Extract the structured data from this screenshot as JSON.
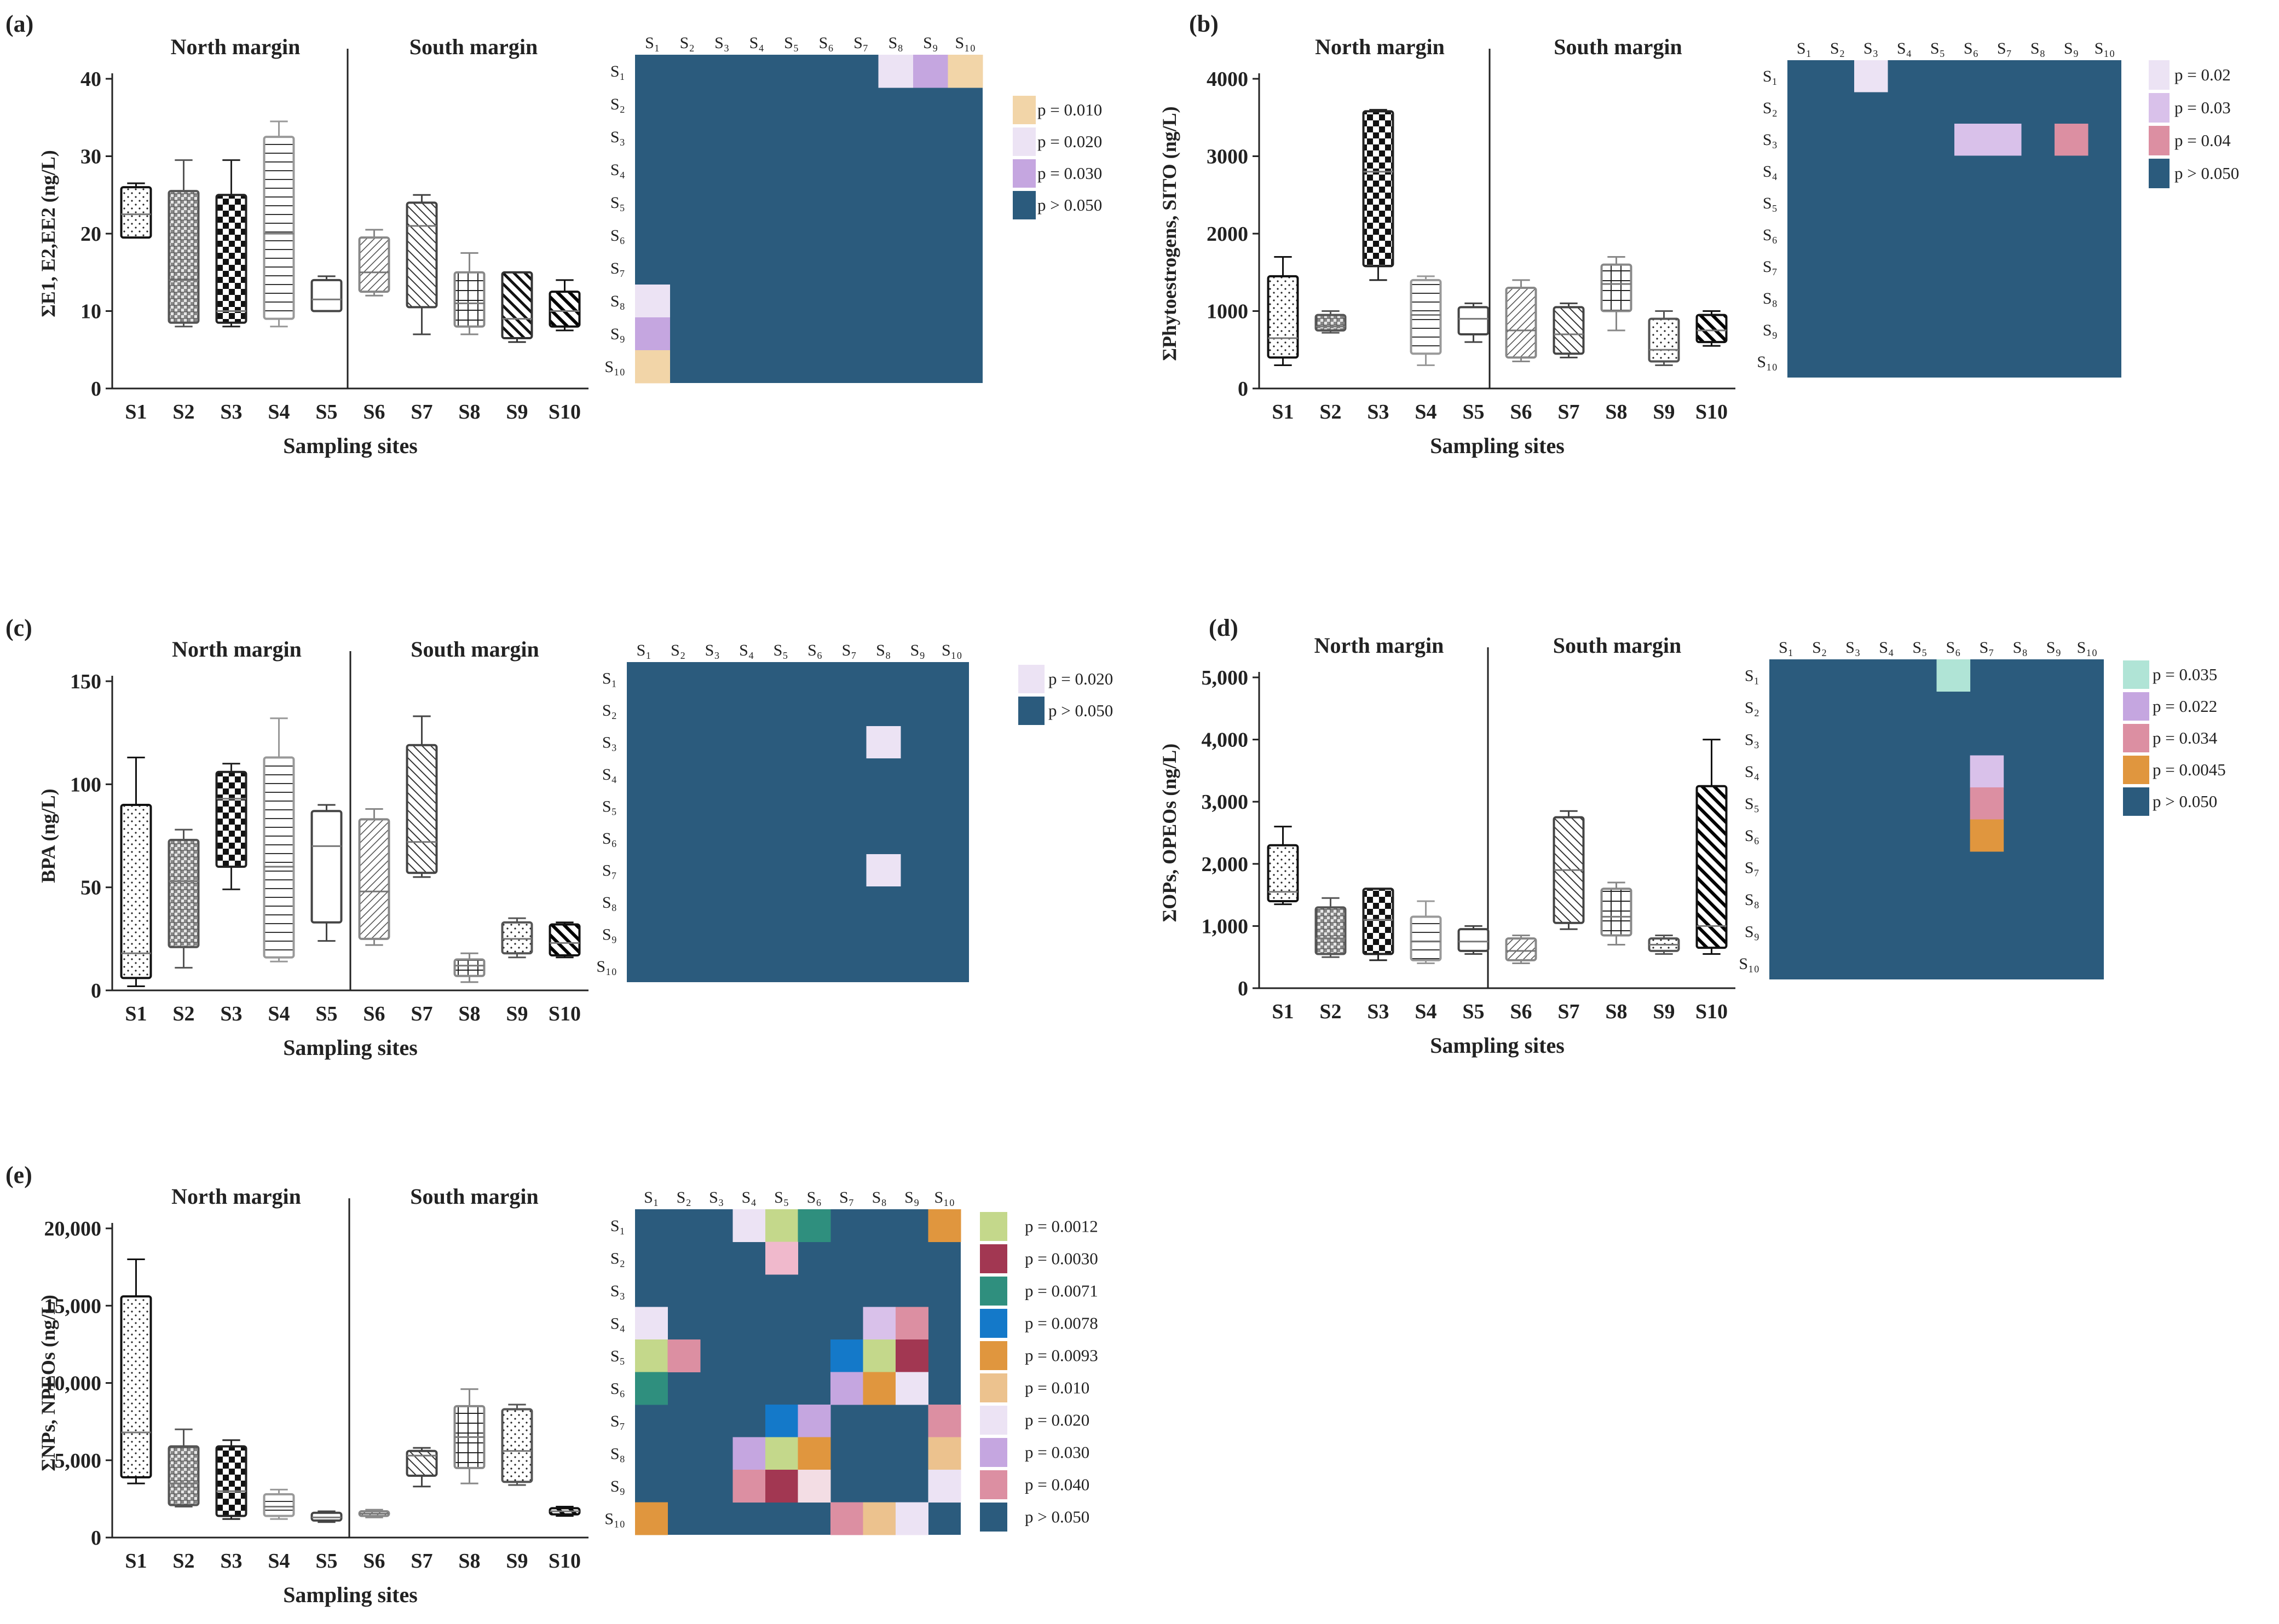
{
  "figure": {
    "sites": [
      "S1",
      "S2",
      "S3",
      "S4",
      "S5",
      "S6",
      "S7",
      "S8",
      "S9",
      "S10"
    ],
    "heatmap_sites": [
      "S₁",
      "S₂",
      "S₃",
      "S₄",
      "S₅",
      "S₆",
      "S₇",
      "S₈",
      "S₉",
      "S₁₀"
    ],
    "north_label": "North margin",
    "south_label": "South margin",
    "xlabel": "Sampling sites",
    "heatmap_base_color": "#2b5b7d"
  },
  "chart_data": [
    {
      "type": "boxplot+heatmap",
      "panel": "(a)",
      "ylabel": "ΣE1, E2,EE2 (ng/L)",
      "ylim": [
        0,
        40
      ],
      "yticks": [
        0,
        10,
        20,
        30,
        40
      ],
      "boxes": [
        {
          "site": "S1",
          "min": 19.5,
          "q1": 19.5,
          "median": 22.5,
          "q3": 26,
          "max": 26.5,
          "pattern": "dots",
          "color": "#111111"
        },
        {
          "site": "S2",
          "min": 8,
          "q1": 8.5,
          "median": 14,
          "q3": 25.5,
          "max": 29.5,
          "pattern": "weave",
          "color": "#555555"
        },
        {
          "site": "S3",
          "min": 8,
          "q1": 8.5,
          "median": 10,
          "q3": 25,
          "max": 29.5,
          "pattern": "checker",
          "color": "#222222"
        },
        {
          "site": "S4",
          "min": 8,
          "q1": 9,
          "median": 20,
          "q3": 32.5,
          "max": 34.5,
          "pattern": "hlines",
          "color": "#999999"
        },
        {
          "site": "S5",
          "min": 10,
          "q1": 10,
          "median": 11.5,
          "q3": 14,
          "max": 14.5,
          "pattern": "none",
          "color": "#444444"
        },
        {
          "site": "S6",
          "min": 12,
          "q1": 12.5,
          "median": 15,
          "q3": 19.5,
          "max": 20.5,
          "pattern": "diag",
          "color": "#888888"
        },
        {
          "site": "S7",
          "min": 7,
          "q1": 10.5,
          "median": 21,
          "q3": 24,
          "max": 25,
          "pattern": "diagback",
          "color": "#444444"
        },
        {
          "site": "S8",
          "min": 7,
          "q1": 8,
          "median": 11,
          "q3": 15,
          "max": 17.5,
          "pattern": "grid",
          "color": "#888888"
        },
        {
          "site": "S9",
          "min": 6,
          "q1": 6.5,
          "median": 9,
          "q3": 15,
          "max": 15,
          "pattern": "bolddiag",
          "color": "#333333"
        },
        {
          "site": "S10",
          "min": 7.5,
          "q1": 8,
          "median": 10,
          "q3": 12.5,
          "max": 14,
          "pattern": "bolddiag2",
          "color": "#111111"
        }
      ],
      "heatmap_cells": [
        {
          "row": "S1",
          "col": "S8",
          "color": "#ece3f4"
        },
        {
          "row": "S1",
          "col": "S9",
          "color": "#c5a6e0"
        },
        {
          "row": "S1",
          "col": "S10",
          "color": "#f2d5a8"
        },
        {
          "row": "S8",
          "col": "S1",
          "color": "#ece3f4"
        },
        {
          "row": "S9",
          "col": "S1",
          "color": "#c5a6e0"
        },
        {
          "row": "S10",
          "col": "S1",
          "color": "#f2d5a8"
        }
      ],
      "legend": [
        {
          "label": "p = 0.010",
          "color": "#f2d5a8"
        },
        {
          "label": "p = 0.020",
          "color": "#ece3f4"
        },
        {
          "label": "p = 0.030",
          "color": "#c5a6e0"
        },
        {
          "label": "p > 0.050",
          "color": "#2b5b7d"
        }
      ]
    },
    {
      "type": "boxplot+heatmap",
      "panel": "(b)",
      "ylabel": "ΣPhytoestrogens, SITO (ng/L)",
      "ylim": [
        0,
        4000
      ],
      "yticks": [
        0,
        1000,
        2000,
        3000,
        4000
      ],
      "boxes": [
        {
          "site": "S1",
          "min": 300,
          "q1": 400,
          "median": 650,
          "q3": 1450,
          "max": 1700,
          "pattern": "dots",
          "color": "#111111"
        },
        {
          "site": "S2",
          "min": 720,
          "q1": 750,
          "median": 800,
          "q3": 950,
          "max": 1000,
          "pattern": "weave",
          "color": "#555555"
        },
        {
          "site": "S3",
          "min": 1400,
          "q1": 1580,
          "median": 2800,
          "q3": 3580,
          "max": 3600,
          "pattern": "checker",
          "color": "#222222"
        },
        {
          "site": "S4",
          "min": 300,
          "q1": 450,
          "median": 950,
          "q3": 1400,
          "max": 1450,
          "pattern": "hlines",
          "color": "#999999"
        },
        {
          "site": "S5",
          "min": 600,
          "q1": 700,
          "median": 900,
          "q3": 1050,
          "max": 1100,
          "pattern": "none",
          "color": "#444444"
        },
        {
          "site": "S6",
          "min": 350,
          "q1": 400,
          "median": 750,
          "q3": 1300,
          "max": 1400,
          "pattern": "diag",
          "color": "#888888"
        },
        {
          "site": "S7",
          "min": 400,
          "q1": 450,
          "median": 700,
          "q3": 1050,
          "max": 1100,
          "pattern": "diagback",
          "color": "#444444"
        },
        {
          "site": "S8",
          "min": 750,
          "q1": 1000,
          "median": 1350,
          "q3": 1600,
          "max": 1700,
          "pattern": "grid",
          "color": "#888888"
        },
        {
          "site": "S9",
          "min": 300,
          "q1": 350,
          "median": 500,
          "q3": 900,
          "max": 1000,
          "pattern": "dots",
          "color": "#555555"
        },
        {
          "site": "S10",
          "min": 550,
          "q1": 600,
          "median": 750,
          "q3": 950,
          "max": 1000,
          "pattern": "bolddiag2",
          "color": "#111111"
        }
      ],
      "heatmap_cells": [
        {
          "row": "S1",
          "col": "S3",
          "color": "#ece3f4"
        },
        {
          "row": "S3",
          "col": "S6",
          "color": "#d9c1ea"
        },
        {
          "row": "S3",
          "col": "S7",
          "color": "#d9c1ea"
        },
        {
          "row": "S3",
          "col": "S9",
          "color": "#dc8fa2"
        }
      ],
      "legend": [
        {
          "label": "p = 0.02",
          "color": "#ece3f4"
        },
        {
          "label": "p = 0.03",
          "color": "#d9c1ea"
        },
        {
          "label": "p = 0.04",
          "color": "#dc8fa2"
        },
        {
          "label": "p > 0.050",
          "color": "#2b5b7d"
        }
      ]
    },
    {
      "type": "boxplot+heatmap",
      "panel": "(c)",
      "ylabel": "BPA (ng/L)",
      "ylim": [
        0,
        150
      ],
      "yticks": [
        0,
        50,
        100,
        150
      ],
      "boxes": [
        {
          "site": "S1",
          "min": 2,
          "q1": 6,
          "median": 18,
          "q3": 90,
          "max": 113,
          "pattern": "dots",
          "color": "#111111"
        },
        {
          "site": "S2",
          "min": 11,
          "q1": 21,
          "median": 53,
          "q3": 73,
          "max": 78,
          "pattern": "weave",
          "color": "#555555"
        },
        {
          "site": "S3",
          "min": 49,
          "q1": 60,
          "median": 93,
          "q3": 106,
          "max": 110,
          "pattern": "checker",
          "color": "#222222"
        },
        {
          "site": "S4",
          "min": 14,
          "q1": 16,
          "median": 60,
          "q3": 113,
          "max": 132,
          "pattern": "hlines",
          "color": "#999999"
        },
        {
          "site": "S5",
          "min": 24,
          "q1": 33,
          "median": 70,
          "q3": 87,
          "max": 90,
          "pattern": "none",
          "color": "#444444"
        },
        {
          "site": "S6",
          "min": 22,
          "q1": 25,
          "median": 48,
          "q3": 83,
          "max": 88,
          "pattern": "diag",
          "color": "#888888"
        },
        {
          "site": "S7",
          "min": 55,
          "q1": 57,
          "median": 72,
          "q3": 119,
          "max": 133,
          "pattern": "diagback",
          "color": "#444444"
        },
        {
          "site": "S8",
          "min": 4,
          "q1": 7,
          "median": 12,
          "q3": 15,
          "max": 18,
          "pattern": "grid",
          "color": "#888888"
        },
        {
          "site": "S9",
          "min": 16,
          "q1": 18,
          "median": 25,
          "q3": 33,
          "max": 35,
          "pattern": "dots",
          "color": "#555555"
        },
        {
          "site": "S10",
          "min": 16,
          "q1": 17,
          "median": 23,
          "q3": 32,
          "max": 33,
          "pattern": "bolddiag2",
          "color": "#111111"
        }
      ],
      "heatmap_cells": [
        {
          "row": "S3",
          "col": "S8",
          "color": "#ece3f4"
        },
        {
          "row": "S7",
          "col": "S8",
          "color": "#ece3f4"
        }
      ],
      "legend": [
        {
          "label": "p = 0.020",
          "color": "#ece3f4"
        },
        {
          "label": "p > 0.050",
          "color": "#2b5b7d"
        }
      ]
    },
    {
      "type": "boxplot+heatmap",
      "panel": "(d)",
      "ylabel": "ΣOPs, OPEOs (ng/L)",
      "ylim": [
        0,
        5000
      ],
      "yticks": [
        0,
        1000,
        2000,
        3000,
        4000,
        5000
      ],
      "ytick_labels": [
        "0",
        "1,000",
        "2,000",
        "3,000",
        "4,000",
        "5,000"
      ],
      "boxes": [
        {
          "site": "S1",
          "min": 1350,
          "q1": 1400,
          "median": 1550,
          "q3": 2300,
          "max": 2600,
          "pattern": "dots",
          "color": "#111111"
        },
        {
          "site": "S2",
          "min": 500,
          "q1": 550,
          "median": 800,
          "q3": 1300,
          "max": 1450,
          "pattern": "weave",
          "color": "#555555"
        },
        {
          "site": "S3",
          "min": 450,
          "q1": 550,
          "median": 1100,
          "q3": 1600,
          "max": 1600,
          "pattern": "checker",
          "color": "#222222"
        },
        {
          "site": "S4",
          "min": 400,
          "q1": 450,
          "median": 750,
          "q3": 1150,
          "max": 1400,
          "pattern": "hlines",
          "color": "#999999"
        },
        {
          "site": "S5",
          "min": 550,
          "q1": 600,
          "median": 750,
          "q3": 950,
          "max": 1000,
          "pattern": "none",
          "color": "#444444"
        },
        {
          "site": "S6",
          "min": 400,
          "q1": 450,
          "median": 600,
          "q3": 800,
          "max": 850,
          "pattern": "diag",
          "color": "#888888"
        },
        {
          "site": "S7",
          "min": 950,
          "q1": 1050,
          "median": 1900,
          "q3": 2750,
          "max": 2850,
          "pattern": "diagback",
          "color": "#444444"
        },
        {
          "site": "S8",
          "min": 700,
          "q1": 850,
          "median": 1150,
          "q3": 1600,
          "max": 1700,
          "pattern": "grid",
          "color": "#888888"
        },
        {
          "site": "S9",
          "min": 550,
          "q1": 600,
          "median": 700,
          "q3": 800,
          "max": 850,
          "pattern": "dots",
          "color": "#555555"
        },
        {
          "site": "S10",
          "min": 550,
          "q1": 650,
          "median": 1000,
          "q3": 3250,
          "max": 4000,
          "pattern": "bolddiag2",
          "color": "#111111"
        }
      ],
      "heatmap_cells": [
        {
          "row": "S1",
          "col": "S6",
          "color": "#b0e4d6"
        },
        {
          "row": "S4",
          "col": "S7",
          "color": "#d9c1ea"
        },
        {
          "row": "S5",
          "col": "S7",
          "color": "#dc8fa2"
        },
        {
          "row": "S6",
          "col": "S7",
          "color": "#e0963e"
        }
      ],
      "legend": [
        {
          "label": "p =  0.035",
          "color": "#b0e4d6"
        },
        {
          "label": "p =  0.022",
          "color": "#c5a6e0"
        },
        {
          "label": "p =  0.034",
          "color": "#dc8fa2"
        },
        {
          "label": "p =  0.0045",
          "color": "#e0963e"
        },
        {
          "label": "p >  0.050",
          "color": "#2b5b7d"
        }
      ]
    },
    {
      "type": "boxplot+heatmap",
      "panel": "(e)",
      "ylabel": "ΣNPs, NPEOs (ng/L)",
      "ylim": [
        0,
        20000
      ],
      "yticks": [
        0,
        5000,
        10000,
        15000,
        20000
      ],
      "ytick_labels": [
        "0",
        "5,000",
        "10,000",
        "15,000",
        "20,000"
      ],
      "boxes": [
        {
          "site": "S1",
          "min": 3500,
          "q1": 3900,
          "median": 6800,
          "q3": 15600,
          "max": 18000,
          "pattern": "dots",
          "color": "#111111"
        },
        {
          "site": "S2",
          "min": 2000,
          "q1": 2100,
          "median": 3500,
          "q3": 5900,
          "max": 7000,
          "pattern": "weave",
          "color": "#555555"
        },
        {
          "site": "S3",
          "min": 1200,
          "q1": 1400,
          "median": 3000,
          "q3": 5900,
          "max": 6300,
          "pattern": "checker",
          "color": "#222222"
        },
        {
          "site": "S4",
          "min": 1200,
          "q1": 1400,
          "median": 2000,
          "q3": 2800,
          "max": 3100,
          "pattern": "hlines",
          "color": "#999999"
        },
        {
          "site": "S5",
          "min": 1000,
          "q1": 1100,
          "median": 1300,
          "q3": 1600,
          "max": 1700,
          "pattern": "none",
          "color": "#444444"
        },
        {
          "site": "S6",
          "min": 1300,
          "q1": 1400,
          "median": 1550,
          "q3": 1700,
          "max": 1800,
          "pattern": "diag",
          "color": "#888888"
        },
        {
          "site": "S7",
          "min": 3300,
          "q1": 4000,
          "median": 5300,
          "q3": 5600,
          "max": 5800,
          "pattern": "diagback",
          "color": "#444444"
        },
        {
          "site": "S8",
          "min": 3500,
          "q1": 4500,
          "median": 6500,
          "q3": 8500,
          "max": 9600,
          "pattern": "grid",
          "color": "#888888"
        },
        {
          "site": "S9",
          "min": 3400,
          "q1": 3600,
          "median": 5600,
          "q3": 8300,
          "max": 8600,
          "pattern": "dots",
          "color": "#555555"
        },
        {
          "site": "S10",
          "min": 1400,
          "q1": 1500,
          "median": 1700,
          "q3": 1900,
          "max": 2000,
          "pattern": "bolddiag2",
          "color": "#111111"
        }
      ],
      "heatmap_cells": [
        {
          "row": "S1",
          "col": "S4",
          "color": "#ece3f4"
        },
        {
          "row": "S1",
          "col": "S5",
          "color": "#c4d88b"
        },
        {
          "row": "S1",
          "col": "S6",
          "color": "#2f8f7e"
        },
        {
          "row": "S1",
          "col": "S10",
          "color": "#e0963e"
        },
        {
          "row": "S2",
          "col": "S5",
          "color": "#f0b9cc"
        },
        {
          "row": "S4",
          "col": "S1",
          "color": "#ece3f4"
        },
        {
          "row": "S4",
          "col": "S8",
          "color": "#d9c1ea"
        },
        {
          "row": "S4",
          "col": "S9",
          "color": "#dc8fa2"
        },
        {
          "row": "S5",
          "col": "S1",
          "color": "#c4d88b"
        },
        {
          "row": "S5",
          "col": "S2",
          "color": "#dc8fa2"
        },
        {
          "row": "S5",
          "col": "S7",
          "color": "#1479c9"
        },
        {
          "row": "S5",
          "col": "S8",
          "color": "#c4d88b"
        },
        {
          "row": "S5",
          "col": "S9",
          "color": "#a23752"
        },
        {
          "row": "S6",
          "col": "S1",
          "color": "#2f8f7e"
        },
        {
          "row": "S6",
          "col": "S7",
          "color": "#c5a6e0"
        },
        {
          "row": "S6",
          "col": "S8",
          "color": "#e0963e"
        },
        {
          "row": "S6",
          "col": "S9",
          "color": "#ece3f4"
        },
        {
          "row": "S7",
          "col": "S5",
          "color": "#1479c9"
        },
        {
          "row": "S7",
          "col": "S6",
          "color": "#c5a6e0"
        },
        {
          "row": "S7",
          "col": "S10",
          "color": "#dc8fa2"
        },
        {
          "row": "S8",
          "col": "S4",
          "color": "#c5a6e0"
        },
        {
          "row": "S8",
          "col": "S5",
          "color": "#c4d88b"
        },
        {
          "row": "S8",
          "col": "S6",
          "color": "#e0963e"
        },
        {
          "row": "S8",
          "col": "S10",
          "color": "#ecc28e"
        },
        {
          "row": "S9",
          "col": "S4",
          "color": "#dc8fa2"
        },
        {
          "row": "S9",
          "col": "S5",
          "color": "#a23752"
        },
        {
          "row": "S9",
          "col": "S6",
          "color": "#f3dde4"
        },
        {
          "row": "S9",
          "col": "S10",
          "color": "#ece3f4"
        },
        {
          "row": "S10",
          "col": "S1",
          "color": "#e0963e"
        },
        {
          "row": "S10",
          "col": "S7",
          "color": "#dc8fa2"
        },
        {
          "row": "S10",
          "col": "S8",
          "color": "#ecc28e"
        },
        {
          "row": "S10",
          "col": "S9",
          "color": "#ece3f4"
        }
      ],
      "legend": [
        {
          "label": "p = 0.0012",
          "color": "#c4d88b"
        },
        {
          "label": "p = 0.0030",
          "color": "#a23752"
        },
        {
          "label": "p = 0.0071",
          "color": "#2f8f7e"
        },
        {
          "label": "p = 0.0078",
          "color": "#1479c9"
        },
        {
          "label": "p = 0.0093",
          "color": "#e0963e"
        },
        {
          "label": "p = 0.010",
          "color": "#ecc28e"
        },
        {
          "label": "p = 0.020",
          "color": "#ece3f4"
        },
        {
          "label": "p = 0.030",
          "color": "#c5a6e0"
        },
        {
          "label": "p = 0.040",
          "color": "#dc8fa2"
        },
        {
          "label": "p > 0.050",
          "color": "#2b5b7d"
        }
      ]
    }
  ]
}
